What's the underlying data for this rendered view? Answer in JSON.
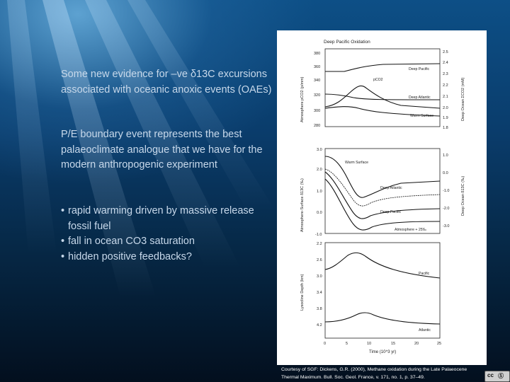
{
  "slide": {
    "para1": "Some new evidence for –ve δ13C excursions associated with oceanic anoxic events (OAEs)",
    "para2": "P/E boundary event represents the best palaeoclimate analogue that we have for the modern anthropogenic experiment",
    "bullets": [
      {
        "text": "rapid warming driven by massive release fossil fuel"
      },
      {
        "text": "fall in ocean CO3 saturation"
      },
      {
        "text": "hidden positive feedbacks?"
      }
    ],
    "bullet_char": "•"
  },
  "figure": {
    "title": "Deep Pacific Oxidation",
    "panel1": {
      "left_axis_label": "Atmosphere pCO2 (p/mm)",
      "right_axis_label": "Deep Ocean ΣCO2 (mM)",
      "left_ticks": [
        "380",
        "360",
        "340",
        "320",
        "300",
        "280"
      ],
      "right_ticks": [
        "2.5",
        "2.4",
        "2.3",
        "2.2",
        "2.1",
        "2.0",
        "1.9",
        "1.8"
      ],
      "labels": [
        "Deep Pacific",
        "pCO2",
        "Deep Atlantic",
        "Warm Surface"
      ]
    },
    "panel2": {
      "left_axis_label": "Atmosphere-Surface δ13C (‰)",
      "right_axis_label": "Deep Ocean δ13C (‰)",
      "left_ticks": [
        "3.0",
        "2.0",
        "1.0",
        "0.0",
        "-1.0"
      ],
      "right_ticks": [
        "1.0",
        "0.0",
        "-1.0",
        "-2.0",
        "-3.0"
      ],
      "labels": [
        "Warm Surface",
        "Deep Atlantic",
        "Deep Pacific",
        "Atmosphere + 25‰"
      ]
    },
    "panel3": {
      "left_axis_label": "Lysocline Depth (km)",
      "left_ticks": [
        "2.2",
        "2.6",
        "3.0",
        "3.4",
        "3.8",
        "4.2"
      ],
      "labels": [
        "Pacific",
        "Atlantic"
      ]
    },
    "x_ticks": [
      "0",
      "5",
      "10",
      "15",
      "20",
      "25"
    ],
    "x_label": "Time (10^3 yr)"
  },
  "caption": {
    "line1": "Courtesy of SGF: Dickens, G.R. (2000), Methane oxidation during the Late Palaeocene",
    "line2": "Thermal Maximum. Bull. Soc. Geol. France, v. 171, no. 1, p. 37–49."
  },
  "badge": {
    "text": "cc",
    "text2": "Ⓢ"
  }
}
